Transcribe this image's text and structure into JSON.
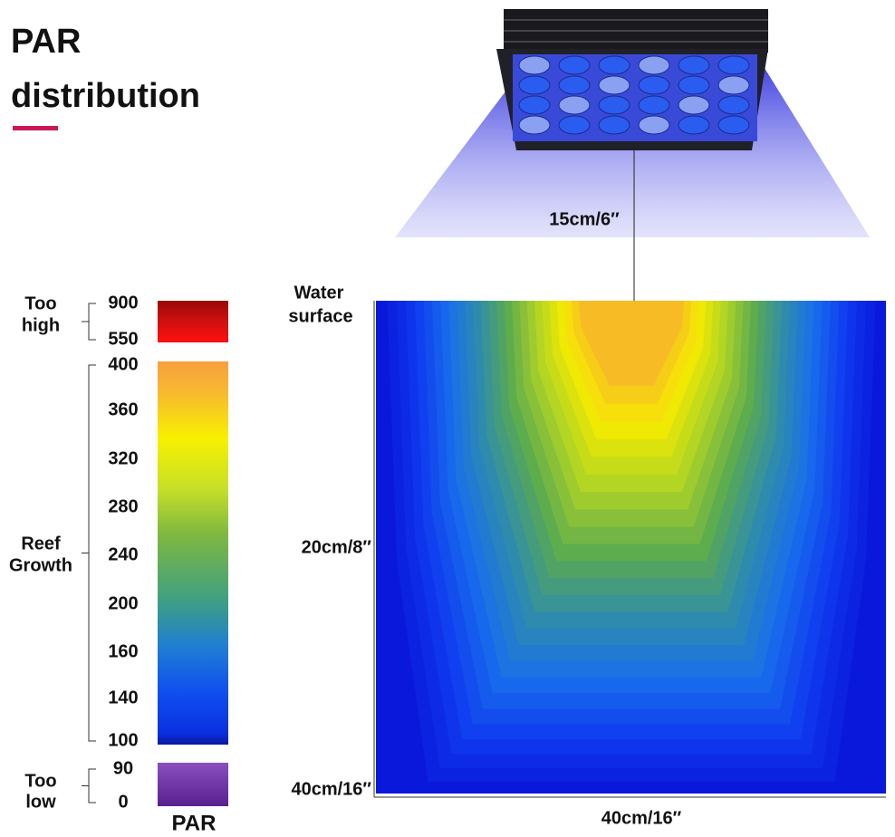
{
  "title": [
    "PAR",
    "distribution"
  ],
  "light_distance": "15cm/6″",
  "water_surface": [
    "Water",
    "surface"
  ],
  "depth_mid": "20cm/8″",
  "depth_bottom": "40cm/16″",
  "width": "40cm/16″",
  "legend": {
    "groups": [
      {
        "label": [
          "Too",
          "high"
        ],
        "ticks": [
          900,
          550
        ]
      },
      {
        "label": [
          "Reef",
          "Growth"
        ],
        "ticks": [
          400,
          360,
          320,
          280,
          240,
          200,
          160,
          140,
          100
        ]
      },
      {
        "label": [
          "Too",
          "low"
        ],
        "ticks": [
          90,
          0
        ]
      }
    ],
    "caption": "PAR"
  }
}
